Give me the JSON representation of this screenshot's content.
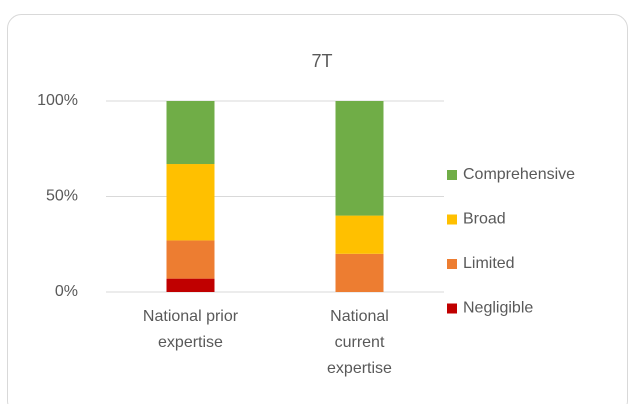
{
  "chart_data": {
    "type": "stacked_bar",
    "title": "7T",
    "categories": [
      "National prior expertise",
      "National current expertise"
    ],
    "series": [
      {
        "name": "Negligible",
        "color": "#c00000",
        "values": [
          7,
          0
        ]
      },
      {
        "name": "Limited",
        "color": "#ed7d31",
        "values": [
          20,
          20
        ]
      },
      {
        "name": "Broad",
        "color": "#ffc000",
        "values": [
          40,
          20
        ]
      },
      {
        "name": "Comprehensive",
        "color": "#70ad47",
        "values": [
          33,
          60
        ]
      }
    ],
    "ylim": [
      0,
      100
    ],
    "yticks": [
      {
        "value": 0,
        "label": "0%"
      },
      {
        "value": 50,
        "label": "50%"
      },
      {
        "value": 100,
        "label": "100%"
      }
    ],
    "grid": true,
    "legend": "right"
  }
}
